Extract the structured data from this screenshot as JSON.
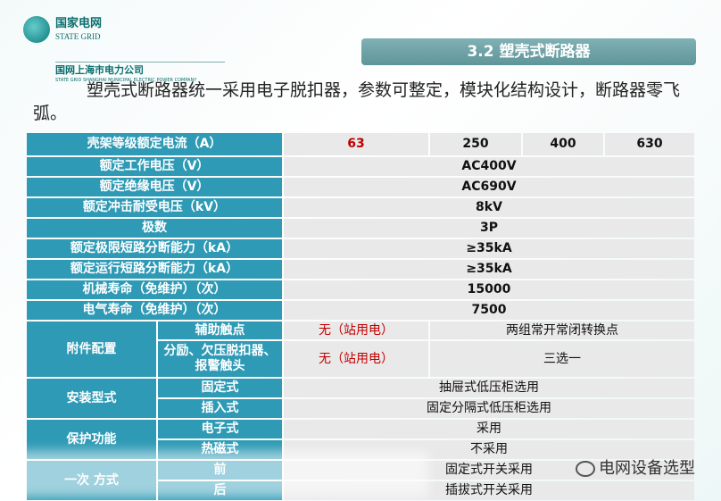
{
  "logo": {
    "cn": "国家电网",
    "en": "STATE GRID",
    "company_cn": "国网上海市电力公司",
    "company_en": "STATE GRID SHANGHAI MUNICIPAL ELECTRIC POWER COMPANY"
  },
  "title": "3.2 塑壳式断路器",
  "intro": "塑壳式断路器统一采用电子脱扣器，参数可整定，模块化结构设计，断路器零飞弧。",
  "table": {
    "header": {
      "label": "壳架等级额定电流（A）",
      "values": [
        "63",
        "250",
        "400",
        "630"
      ]
    },
    "rows": [
      {
        "label": "额定工作电压（V）",
        "value": "AC400V"
      },
      {
        "label": "额定绝缘电压（V）",
        "value": "AC690V"
      },
      {
        "label": "额定冲击耐受电压（kV）",
        "value": "8kV"
      },
      {
        "label": "极数",
        "value": "3P"
      },
      {
        "label": "额定极限短路分断能力（kA）",
        "value": "≥35kA"
      },
      {
        "label": "额定运行短路分断能力（kA）",
        "value": "≥35kA"
      },
      {
        "label": "机械寿命（免维护）（次）",
        "value": "15000"
      },
      {
        "label": "电气寿命（免维护）（次）",
        "value": "7500"
      }
    ],
    "accessory": {
      "label": "附件配置",
      "items": [
        {
          "label": "辅助触点",
          "v63": "无（站用电）",
          "value": "两组常开常闭转换点"
        },
        {
          "label": "分励、欠压脱扣器、报警触头",
          "v63": "无（站用电）",
          "value": "三选一"
        }
      ]
    },
    "install": {
      "label": "安装型式",
      "items": [
        {
          "label": "固定式",
          "value": "抽屉式低压柜选用"
        },
        {
          "label": "插入式",
          "value": "固定分隔式低压柜选用"
        }
      ]
    },
    "protect": {
      "label": "保护功能",
      "items": [
        {
          "label": "电子式",
          "value": "采用"
        },
        {
          "label": "热磁式",
          "value": "不采用"
        }
      ]
    },
    "wiring": {
      "label": "一次  方式",
      "items": [
        {
          "label": "前",
          "value": "固定式开关采用"
        },
        {
          "label": "后",
          "value": "插拔式开关采用"
        }
      ]
    }
  },
  "watermark": "电网设备选型"
}
